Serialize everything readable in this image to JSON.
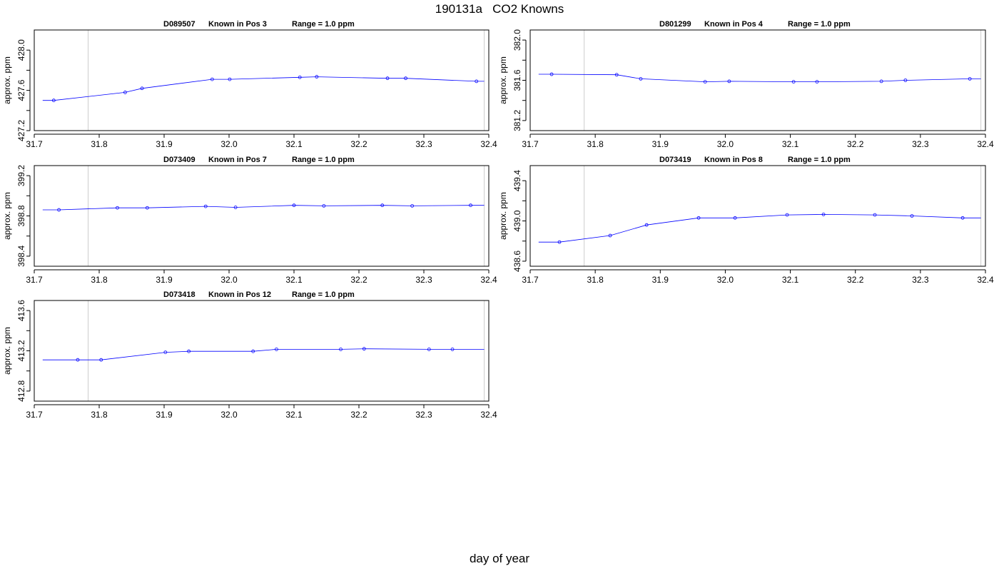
{
  "page": {
    "title": "190131a   CO2 Knowns",
    "xlabel": "day of year"
  },
  "chart_data": [
    {
      "type": "line",
      "title_parts": [
        "D089507",
        "Known in Pos 3",
        "Range = 1.0 ppm"
      ],
      "xlabel": "",
      "ylabel": "approx. ppm",
      "xlim": [
        31.7,
        32.4
      ],
      "ylim": [
        427.2,
        428.2
      ],
      "xticks": [
        "31.7",
        "31.8",
        "31.9",
        "32.0",
        "32.1",
        "32.2",
        "32.3",
        "32.4"
      ],
      "yticks": [
        "427.2",
        "427.6",
        "428.0"
      ],
      "vlines": [
        31.783,
        32.393
      ],
      "line_x": [
        31.713,
        31.73,
        31.84,
        31.866,
        31.974,
        32.001,
        32.109,
        32.135,
        32.244,
        32.272,
        32.381,
        32.393
      ],
      "line_y": [
        427.5,
        427.5,
        427.58,
        427.62,
        427.71,
        427.71,
        427.73,
        427.735,
        427.72,
        427.72,
        427.69,
        427.69
      ],
      "x": [
        31.73,
        31.84,
        31.866,
        31.974,
        32.001,
        32.109,
        32.135,
        32.244,
        32.272,
        32.381
      ],
      "y": [
        427.5,
        427.58,
        427.62,
        427.71,
        427.71,
        427.73,
        427.735,
        427.72,
        427.72,
        427.69
      ]
    },
    {
      "type": "line",
      "title_parts": [
        "D801299",
        "Known in Pos 4",
        "Range = 1.0 ppm"
      ],
      "xlabel": "",
      "ylabel": "approx. ppm",
      "xlim": [
        31.7,
        32.4
      ],
      "ylim": [
        381.1,
        382.1
      ],
      "xticks": [
        "31.7",
        "31.8",
        "31.9",
        "32.0",
        "32.1",
        "32.2",
        "32.3",
        "32.4"
      ],
      "yticks": [
        "381.2",
        "381.6",
        "382.0"
      ],
      "vlines": [
        31.783,
        32.393
      ],
      "line_x": [
        31.713,
        31.733,
        31.833,
        31.87,
        31.969,
        32.006,
        32.105,
        32.141,
        32.24,
        32.277,
        32.376,
        32.393
      ],
      "line_y": [
        381.66,
        381.66,
        381.655,
        381.615,
        381.585,
        381.59,
        381.585,
        381.585,
        381.59,
        381.6,
        381.615,
        381.615
      ],
      "x": [
        31.733,
        31.833,
        31.87,
        31.969,
        32.006,
        32.105,
        32.141,
        32.24,
        32.277,
        32.376
      ],
      "y": [
        381.66,
        381.655,
        381.615,
        381.585,
        381.59,
        381.585,
        381.585,
        381.59,
        381.6,
        381.615
      ]
    },
    {
      "type": "line",
      "title_parts": [
        "D073409",
        "Known in Pos 7",
        "Range = 1.0 ppm"
      ],
      "xlabel": "",
      "ylabel": "approx. ppm",
      "xlim": [
        31.7,
        32.4
      ],
      "ylim": [
        398.3,
        399.3
      ],
      "xticks": [
        "31.7",
        "31.8",
        "31.9",
        "32.0",
        "32.1",
        "32.2",
        "32.3",
        "32.4"
      ],
      "yticks": [
        "398.4",
        "398.8",
        "399.2"
      ],
      "vlines": [
        31.783,
        32.393
      ],
      "line_x": [
        31.713,
        31.738,
        31.828,
        31.874,
        31.964,
        32.01,
        32.1,
        32.146,
        32.236,
        32.282,
        32.372,
        32.393
      ],
      "line_y": [
        398.86,
        398.86,
        398.88,
        398.88,
        398.895,
        398.885,
        398.905,
        398.9,
        398.905,
        398.9,
        398.905,
        398.905
      ],
      "x": [
        31.738,
        31.828,
        31.874,
        31.964,
        32.01,
        32.1,
        32.146,
        32.236,
        32.282,
        32.372
      ],
      "y": [
        398.86,
        398.88,
        398.88,
        398.895,
        398.885,
        398.905,
        398.9,
        398.905,
        398.9,
        398.905
      ]
    },
    {
      "type": "line",
      "title_parts": [
        "D073419",
        "Known in Pos 8",
        "Range = 1.0 ppm"
      ],
      "xlabel": "",
      "ylabel": "approx. ppm",
      "xlim": [
        31.7,
        32.4
      ],
      "ylim": [
        438.55,
        439.55
      ],
      "xticks": [
        "31.7",
        "31.8",
        "31.9",
        "32.0",
        "32.1",
        "32.2",
        "32.3",
        "32.4"
      ],
      "yticks": [
        "438.6",
        "439.0",
        "439.4"
      ],
      "vlines": [
        31.783,
        32.393
      ],
      "line_x": [
        31.713,
        31.745,
        31.823,
        31.879,
        31.959,
        32.015,
        32.095,
        32.151,
        32.23,
        32.287,
        32.365,
        32.393
      ],
      "line_y": [
        438.79,
        438.79,
        438.855,
        438.96,
        439.03,
        439.03,
        439.06,
        439.065,
        439.06,
        439.05,
        439.03,
        439.03
      ],
      "x": [
        31.745,
        31.823,
        31.879,
        31.959,
        32.015,
        32.095,
        32.151,
        32.23,
        32.287,
        32.365
      ],
      "y": [
        438.79,
        438.855,
        438.96,
        439.03,
        439.03,
        439.06,
        439.065,
        439.06,
        439.05,
        439.03
      ]
    },
    {
      "type": "line",
      "title_parts": [
        "D073418",
        "Known in Pos 12",
        "Range = 1.0 ppm"
      ],
      "xlabel": "",
      "ylabel": "approx. ppm",
      "xlim": [
        31.7,
        32.4
      ],
      "ylim": [
        412.7,
        413.7
      ],
      "xticks": [
        "31.7",
        "31.8",
        "31.9",
        "32.0",
        "32.1",
        "32.2",
        "32.3",
        "32.4"
      ],
      "yticks": [
        "412.8",
        "413.2",
        "413.6"
      ],
      "vlines": [
        31.783,
        32.393
      ],
      "line_x": [
        31.713,
        31.767,
        31.803,
        31.902,
        31.938,
        32.037,
        32.073,
        32.172,
        32.208,
        32.308,
        32.344,
        32.393
      ],
      "line_y": [
        413.11,
        413.11,
        413.11,
        413.185,
        413.195,
        413.195,
        413.215,
        413.215,
        413.22,
        413.215,
        413.215,
        413.215
      ],
      "x": [
        31.767,
        31.803,
        31.902,
        31.938,
        32.037,
        32.073,
        32.172,
        32.208,
        32.308,
        32.344
      ],
      "y": [
        413.11,
        413.11,
        413.185,
        413.195,
        413.195,
        413.215,
        413.215,
        413.22,
        413.215,
        413.215
      ]
    }
  ]
}
